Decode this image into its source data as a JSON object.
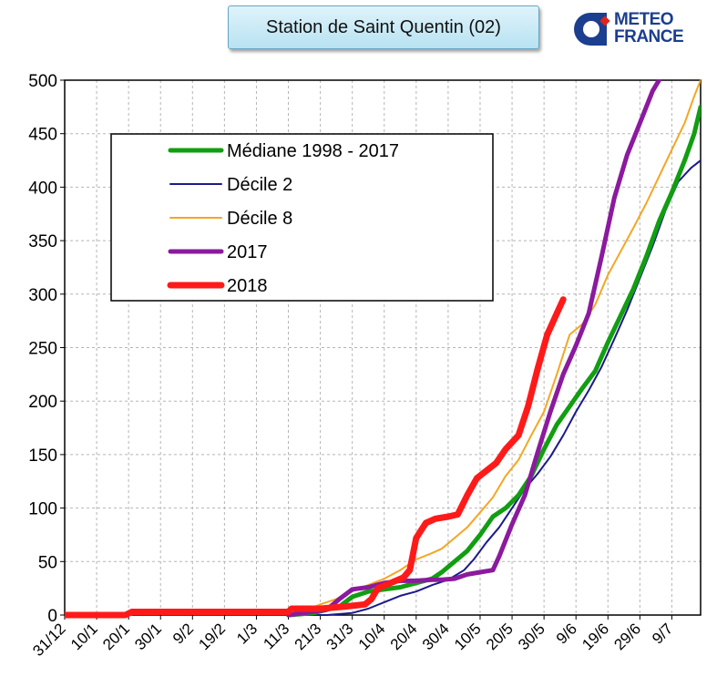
{
  "header": {
    "title": "Station de Saint Quentin (02)"
  },
  "logo": {
    "line1": "METEO",
    "line2": "FRANCE",
    "color": "#1b3e8f",
    "accent": "#e2231a"
  },
  "chart_data": {
    "type": "line",
    "ylim": [
      0,
      500
    ],
    "yticks": [
      0,
      50,
      100,
      150,
      200,
      250,
      300,
      350,
      400,
      450,
      500
    ],
    "xlim": [
      0,
      199
    ],
    "xticks": [
      {
        "label": "31/12",
        "x": 0
      },
      {
        "label": "10/1",
        "x": 10
      },
      {
        "label": "20/1",
        "x": 20
      },
      {
        "label": "30/1",
        "x": 30
      },
      {
        "label": "9/2",
        "x": 40
      },
      {
        "label": "19/2",
        "x": 50
      },
      {
        "label": "1/3",
        "x": 60
      },
      {
        "label": "11/3",
        "x": 70
      },
      {
        "label": "21/3",
        "x": 80
      },
      {
        "label": "31/3",
        "x": 90
      },
      {
        "label": "10/4",
        "x": 100
      },
      {
        "label": "20/4",
        "x": 110
      },
      {
        "label": "30/4",
        "x": 120
      },
      {
        "label": "10/5",
        "x": 130
      },
      {
        "label": "20/5",
        "x": 140
      },
      {
        "label": "30/5",
        "x": 150
      },
      {
        "label": "9/6",
        "x": 160
      },
      {
        "label": "19/6",
        "x": 170
      },
      {
        "label": "29/6",
        "x": 180
      },
      {
        "label": "9/7",
        "x": 190
      }
    ],
    "grid": true,
    "legend_position": "top-left",
    "series": [
      {
        "name": "Médiane 1998 - 2017",
        "color": "#119e11",
        "width": 5,
        "points": [
          [
            70,
            0
          ],
          [
            78,
            2
          ],
          [
            82,
            5
          ],
          [
            86,
            8
          ],
          [
            90,
            17
          ],
          [
            95,
            22
          ],
          [
            100,
            24
          ],
          [
            105,
            26
          ],
          [
            110,
            30
          ],
          [
            115,
            34
          ],
          [
            118,
            40
          ],
          [
            122,
            50
          ],
          [
            126,
            60
          ],
          [
            130,
            75
          ],
          [
            134,
            92
          ],
          [
            138,
            100
          ],
          [
            142,
            112
          ],
          [
            146,
            130
          ],
          [
            150,
            155
          ],
          [
            154,
            178
          ],
          [
            158,
            195
          ],
          [
            162,
            212
          ],
          [
            166,
            228
          ],
          [
            170,
            255
          ],
          [
            174,
            280
          ],
          [
            178,
            305
          ],
          [
            182,
            335
          ],
          [
            186,
            368
          ],
          [
            190,
            395
          ],
          [
            194,
            425
          ],
          [
            197,
            450
          ],
          [
            199,
            475
          ]
        ]
      },
      {
        "name": "Décile 2",
        "color": "#1a1a8c",
        "width": 2,
        "points": [
          [
            70,
            0
          ],
          [
            82,
            0
          ],
          [
            90,
            2
          ],
          [
            95,
            6
          ],
          [
            100,
            12
          ],
          [
            105,
            18
          ],
          [
            110,
            22
          ],
          [
            115,
            28
          ],
          [
            120,
            33
          ],
          [
            125,
            42
          ],
          [
            128,
            52
          ],
          [
            132,
            68
          ],
          [
            136,
            82
          ],
          [
            140,
            100
          ],
          [
            144,
            118
          ],
          [
            148,
            132
          ],
          [
            152,
            148
          ],
          [
            156,
            168
          ],
          [
            160,
            190
          ],
          [
            164,
            210
          ],
          [
            168,
            232
          ],
          [
            172,
            258
          ],
          [
            176,
            285
          ],
          [
            180,
            315
          ],
          [
            184,
            345
          ],
          [
            188,
            378
          ],
          [
            192,
            405
          ],
          [
            196,
            418
          ],
          [
            199,
            425
          ]
        ]
      },
      {
        "name": "Décile 8",
        "color": "#f5a623",
        "width": 2,
        "points": [
          [
            70,
            0
          ],
          [
            75,
            4
          ],
          [
            80,
            10
          ],
          [
            85,
            15
          ],
          [
            90,
            22
          ],
          [
            95,
            28
          ],
          [
            100,
            34
          ],
          [
            105,
            42
          ],
          [
            110,
            52
          ],
          [
            115,
            58
          ],
          [
            118,
            62
          ],
          [
            122,
            72
          ],
          [
            126,
            82
          ],
          [
            130,
            96
          ],
          [
            134,
            110
          ],
          [
            138,
            130
          ],
          [
            142,
            145
          ],
          [
            146,
            168
          ],
          [
            150,
            190
          ],
          [
            154,
            225
          ],
          [
            158,
            262
          ],
          [
            162,
            272
          ],
          [
            166,
            290
          ],
          [
            170,
            318
          ],
          [
            174,
            340
          ],
          [
            178,
            362
          ],
          [
            182,
            385
          ],
          [
            186,
            410
          ],
          [
            190,
            435
          ],
          [
            194,
            460
          ],
          [
            197,
            485
          ],
          [
            199,
            505
          ]
        ]
      },
      {
        "name": "2017",
        "color": "#8b1a9e",
        "width": 5,
        "points": [
          [
            70,
            0
          ],
          [
            82,
            5
          ],
          [
            86,
            15
          ],
          [
            90,
            24
          ],
          [
            95,
            26
          ],
          [
            100,
            30
          ],
          [
            105,
            32
          ],
          [
            110,
            32
          ],
          [
            115,
            33
          ],
          [
            118,
            33
          ],
          [
            122,
            34
          ],
          [
            126,
            38
          ],
          [
            130,
            40
          ],
          [
            134,
            42
          ],
          [
            136,
            55
          ],
          [
            140,
            85
          ],
          [
            144,
            112
          ],
          [
            148,
            152
          ],
          [
            152,
            190
          ],
          [
            156,
            225
          ],
          [
            160,
            252
          ],
          [
            164,
            282
          ],
          [
            168,
            335
          ],
          [
            172,
            390
          ],
          [
            176,
            430
          ],
          [
            180,
            460
          ],
          [
            184,
            490
          ],
          [
            186,
            505
          ]
        ]
      },
      {
        "name": "2018",
        "color": "#ff1a1a",
        "width": 7,
        "points": [
          [
            0,
            0
          ],
          [
            19,
            0
          ],
          [
            21,
            3
          ],
          [
            40,
            3
          ],
          [
            70,
            3
          ],
          [
            71,
            6
          ],
          [
            80,
            6
          ],
          [
            88,
            8
          ],
          [
            94,
            10
          ],
          [
            96,
            15
          ],
          [
            98,
            25
          ],
          [
            102,
            30
          ],
          [
            106,
            35
          ],
          [
            108,
            42
          ],
          [
            110,
            72
          ],
          [
            113,
            86
          ],
          [
            116,
            90
          ],
          [
            120,
            92
          ],
          [
            123,
            94
          ],
          [
            126,
            112
          ],
          [
            129,
            128
          ],
          [
            132,
            135
          ],
          [
            135,
            142
          ],
          [
            138,
            155
          ],
          [
            142,
            168
          ],
          [
            145,
            195
          ],
          [
            148,
            230
          ],
          [
            151,
            262
          ],
          [
            154,
            282
          ],
          [
            156,
            295
          ]
        ]
      }
    ]
  }
}
